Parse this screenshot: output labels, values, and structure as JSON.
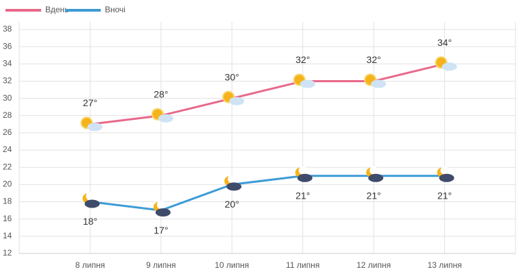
{
  "chart_data": {
    "type": "line",
    "categories": [
      "8 липня",
      "9 липня",
      "10 липня",
      "11 липня",
      "12 липня",
      "13 липня"
    ],
    "series": [
      {
        "name": "Вдень",
        "color": "#e8698a",
        "values": [
          27,
          28,
          30,
          32,
          32,
          34
        ],
        "value_labels": [
          "27°",
          "28°",
          "30°",
          "32°",
          "32°",
          "34°"
        ]
      },
      {
        "name": "Вночі",
        "color": "#3d9bd6",
        "values": [
          18,
          17,
          20,
          21,
          21,
          21
        ],
        "value_labels": [
          "18°",
          "17°",
          "20°",
          "21°",
          "21°",
          "21°"
        ]
      }
    ],
    "ylim": [
      12,
      38
    ],
    "yticks": [
      12,
      14,
      16,
      18,
      20,
      22,
      24,
      26,
      28,
      30,
      32,
      34,
      36,
      38
    ],
    "grid": true,
    "legend": "top-left"
  }
}
